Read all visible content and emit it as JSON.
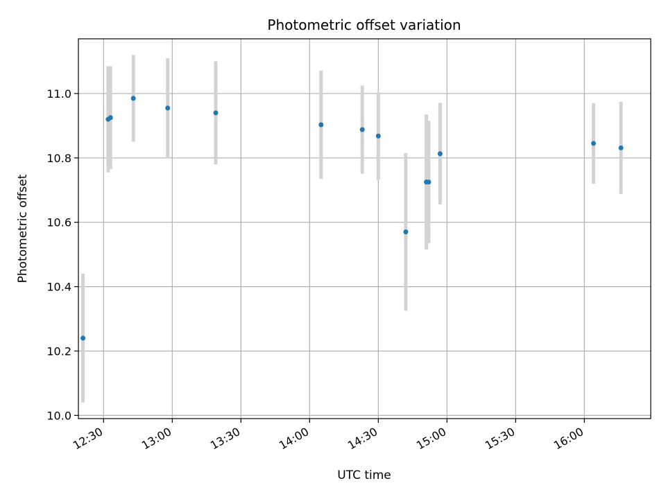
{
  "chart_data": {
    "type": "scatter",
    "title": "Photometric offset variation",
    "xlabel": "UTC time",
    "ylabel": "Photometric offset",
    "xlim": [
      "12:19",
      "16:29"
    ],
    "ylim": [
      9.99,
      11.17
    ],
    "grid": true,
    "colors": {
      "point": "#1f77b4",
      "errorbar": "#d3d3d3",
      "grid": "#b0b0b0"
    },
    "x_ticks": [
      "12:30",
      "13:00",
      "13:30",
      "14:00",
      "14:30",
      "15:00",
      "15:30",
      "16:00"
    ],
    "y_ticks": [
      "10.0",
      "10.2",
      "10.4",
      "10.6",
      "10.8",
      "11.0"
    ],
    "points": [
      {
        "x": "12:21",
        "y": 10.24,
        "yerr": 0.2
      },
      {
        "x": "12:32",
        "y": 10.92,
        "yerr": 0.165
      },
      {
        "x": "12:33",
        "y": 10.925,
        "yerr": 0.16
      },
      {
        "x": "12:43",
        "y": 10.985,
        "yerr": 0.135
      },
      {
        "x": "12:58",
        "y": 10.955,
        "yerr": 0.155
      },
      {
        "x": "13:19",
        "y": 10.94,
        "yerr": 0.16
      },
      {
        "x": "14:05",
        "y": 10.903,
        "yerr": 0.168
      },
      {
        "x": "14:23",
        "y": 10.888,
        "yerr": 0.137
      },
      {
        "x": "14:30",
        "y": 10.868,
        "yerr": 0.136
      },
      {
        "x": "14:42",
        "y": 10.57,
        "yerr": 0.245
      },
      {
        "x": "14:51",
        "y": 10.725,
        "yerr": 0.21
      },
      {
        "x": "14:52",
        "y": 10.725,
        "yerr": 0.19
      },
      {
        "x": "14:57",
        "y": 10.813,
        "yerr": 0.158
      },
      {
        "x": "16:04",
        "y": 10.845,
        "yerr": 0.125
      },
      {
        "x": "16:16",
        "y": 10.831,
        "yerr": 0.143
      }
    ]
  }
}
